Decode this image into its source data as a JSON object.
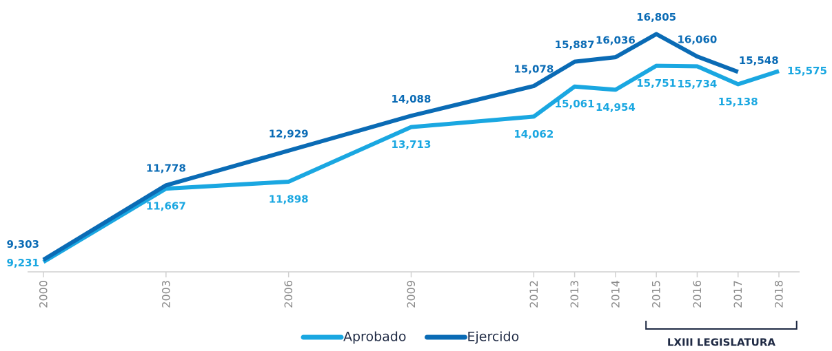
{
  "chart_data": {
    "type": "line",
    "x": [
      2000,
      2003,
      2006,
      2009,
      2012,
      2013,
      2014,
      2015,
      2016,
      2017,
      2018
    ],
    "xlim": [
      2000,
      2018
    ],
    "xticks": [
      2000,
      2003,
      2006,
      2009,
      2012,
      2013,
      2014,
      2015,
      2016,
      2017,
      2018
    ],
    "ylim": [
      8900,
      17000
    ],
    "series": [
      {
        "name": "Aprobado",
        "color": "#1aa7e1",
        "values": [
          9231,
          11667,
          11898,
          13713,
          14062,
          15061,
          14954,
          15751,
          15734,
          15138,
          15575
        ],
        "value_labels": [
          "9,231",
          "11,667",
          "11,898",
          "13,713",
          "14,062",
          "15,061",
          "14,954",
          "15,751",
          "15,734",
          "15,138",
          "15,575"
        ]
      },
      {
        "name": "Ejercido",
        "color": "#0a6bb5",
        "values": [
          9303,
          11778,
          12929,
          14088,
          15078,
          15887,
          16036,
          16805,
          16060,
          15548,
          null
        ],
        "value_labels": [
          "9,303",
          "11,778",
          "12,929",
          "14,088",
          "15,078",
          "15,887",
          "16,036",
          "16,805",
          "16,060",
          "15,548",
          null
        ]
      }
    ],
    "annotations": [
      {
        "text": "LXIII LEGISLATURA",
        "x": [
          2015,
          2017
        ]
      }
    ]
  }
}
